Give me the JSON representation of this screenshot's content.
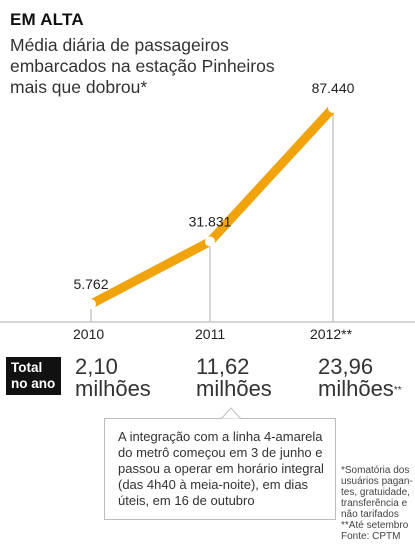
{
  "title": "EM ALTA",
  "subtitle": "Média diária de passageiros embarcados na estação Pinheiros mais que dobrou*",
  "chart_data": {
    "type": "line",
    "title": "EM ALTA",
    "subtitle": "Média diária de passageiros embarcados na estação Pinheiros mais que dobrou*",
    "x": [
      "2010",
      "2011",
      "2012**"
    ],
    "values": [
      5762,
      31831,
      87440
    ],
    "data_labels": [
      "5.762",
      "31.831",
      "87.440"
    ],
    "line_color": "#f0a30a",
    "marker_fill": "#ffffff",
    "grid": false
  },
  "totals": {
    "label_line1": "Total",
    "label_line2": "no ano",
    "values": [
      {
        "number": "2,10",
        "unit": "milhões",
        "mark": ""
      },
      {
        "number": "11,62",
        "unit": "milhões",
        "mark": ""
      },
      {
        "number": "23,96",
        "unit": "milhões",
        "mark": "**"
      }
    ]
  },
  "note": "A integração com a linha 4-amarela do metrô começou em 3 de junho e passou a operar em horário integral (das 4h40 à meia-noite), em dias úteis, em 16 de outubro",
  "footnote": {
    "lines": [
      "*Somatória dos",
      "usuários pagan-",
      "tes, gratuidade,",
      "transferência e",
      "não tarifados",
      "**Até setembro",
      "Fonte: CPTM"
    ]
  },
  "colors": {
    "accent": "#f0a30a",
    "dark": "#111111",
    "guide": "#c8c8c8"
  }
}
